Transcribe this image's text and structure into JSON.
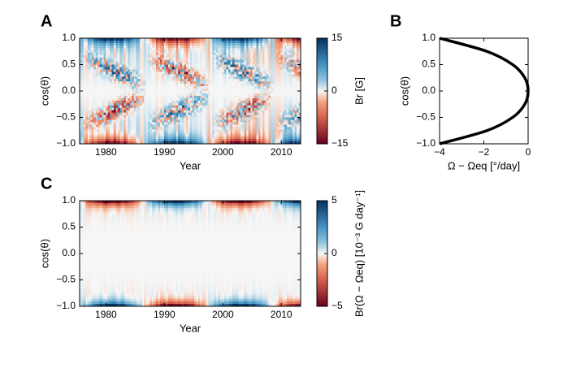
{
  "chart_data": [
    {
      "type": "heatmap",
      "panel": "A",
      "xlabel": "Year",
      "ylabel": "cos(θ)",
      "xlim": [
        1975.5,
        2013.3
      ],
      "xticks": [
        1980,
        1990,
        2000,
        2010
      ],
      "ylim": [
        -1,
        1
      ],
      "yticks": [
        {
          "value": -1,
          "label": "−1.0"
        },
        {
          "value": -0.5,
          "label": "−0.5"
        },
        {
          "value": 0,
          "label": "0.0"
        },
        0.5,
        {
          "value": 1,
          "label": "1.0"
        }
      ],
      "colorbar": {
        "label": "Br [G]",
        "lim": [
          -15,
          15
        ],
        "ticks": [
          {
            "value": -15,
            "label": "−15"
          },
          0,
          15
        ]
      }
    },
    {
      "type": "line",
      "panel": "B",
      "xlabel": "Ω − Ωeq [°/day]",
      "ylabel": "cos(θ)",
      "x": [
        -4,
        -1.86,
        -0.7,
        -0.15,
        0,
        -0.15,
        -0.7,
        -1.86,
        -4
      ],
      "values": [
        -1,
        -0.75,
        -0.5,
        -0.25,
        0,
        0.25,
        0.5,
        0.75,
        1
      ],
      "color": "#000000",
      "xlim": [
        -4,
        0
      ],
      "xticks": [
        {
          "value": -4,
          "label": "−4"
        },
        {
          "value": -2,
          "label": "−2"
        },
        0
      ],
      "ylim": [
        -1,
        1
      ],
      "yticks": [
        {
          "value": -1,
          "label": "−1.0"
        },
        {
          "value": -0.5,
          "label": "−0.5"
        },
        {
          "value": 0,
          "label": "0.0"
        },
        0.5,
        {
          "value": 1,
          "label": "1.0"
        }
      ]
    },
    {
      "type": "heatmap",
      "panel": "C",
      "xlabel": "Year",
      "ylabel": "cos(θ)",
      "xlim": [
        1975.5,
        2013.3
      ],
      "xticks": [
        1980,
        1990,
        2000,
        2010
      ],
      "ylim": [
        -1,
        1
      ],
      "yticks": [
        {
          "value": -1,
          "label": "−1.0"
        },
        {
          "value": -0.5,
          "label": "−0.5"
        },
        {
          "value": 0,
          "label": "0.0"
        },
        0.5,
        {
          "value": 1,
          "label": "1.0"
        }
      ],
      "colorbar": {
        "label": "Br(Ω − Ωeq) [10⁻³ G day⁻¹]",
        "lim": [
          -5,
          5
        ],
        "ticks": [
          {
            "value": -5,
            "label": "−5"
          },
          0,
          5
        ]
      }
    }
  ]
}
